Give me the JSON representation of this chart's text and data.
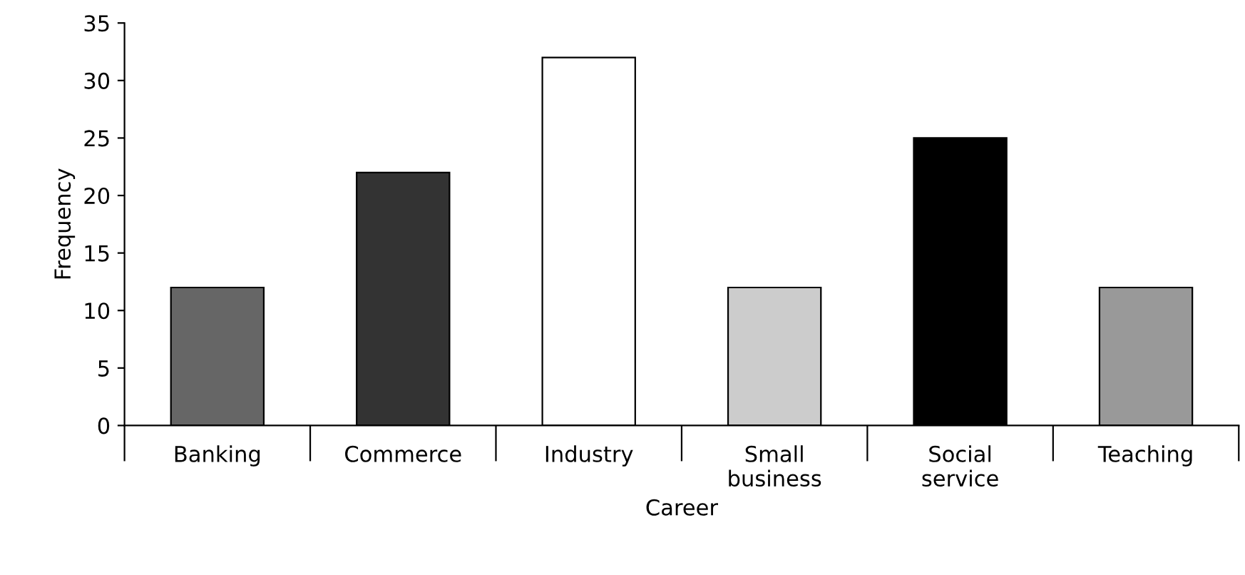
{
  "chart_data": {
    "type": "bar",
    "xlabel": "Career",
    "ylabel": "Frequency",
    "categories": [
      "Banking",
      "Commerce",
      "Industry",
      "Small\nbusiness",
      "Social\nservice",
      "Teaching"
    ],
    "values": [
      12,
      22,
      32,
      12,
      25,
      12
    ],
    "colors": [
      "#666666",
      "#333333",
      "#ffffff",
      "#cccccc",
      "#000000",
      "#999999"
    ],
    "ylim": [
      0,
      35
    ],
    "yticks": [
      0,
      5,
      10,
      15,
      20,
      25,
      30,
      35
    ],
    "grid": false
  }
}
